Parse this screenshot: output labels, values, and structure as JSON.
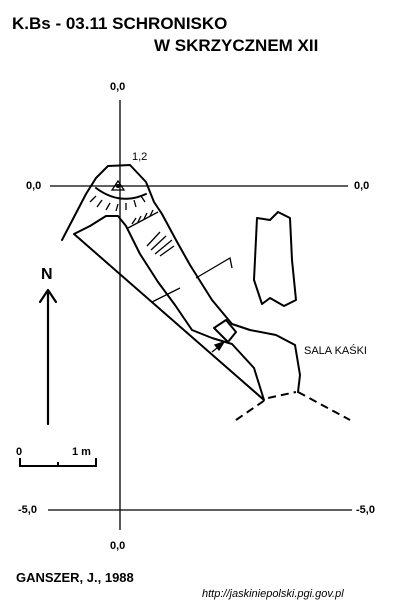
{
  "title": {
    "line1": "K.Bs - 03.11  SCHRONISKO",
    "line2": "W SKRZYCZNEM XII"
  },
  "grid_labels": {
    "top_center": "0,0",
    "left_zero": "0,0",
    "right_zero": "0,0",
    "left_minus5": "-5,0",
    "right_minus5": "-5,0",
    "bottom_center": "0,0"
  },
  "station_label": "1,2",
  "north_label": "N",
  "scale": {
    "zero": "0",
    "one": "1 m"
  },
  "chamber_label": "SALA KAŚKI",
  "author": "GANSZER, J., 1988",
  "source_url": "http://jaskiniepolski.pgi.gov.pl"
}
